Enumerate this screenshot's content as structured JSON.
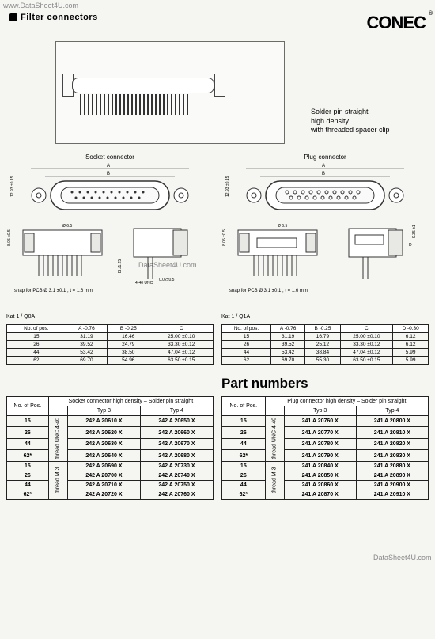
{
  "watermarks": {
    "top": "www.DataSheet4U.com",
    "midL": "DataSheet4U.com",
    "midR": "DataSheet4U.com",
    "lowR": "DataSheet4U.com"
  },
  "header": {
    "title": "Filter connectors",
    "logo": "CONEC",
    "reg": "®"
  },
  "hero": {
    "caption1": "Solder pin straight",
    "caption2": "high density",
    "caption3": "with threaded spacer clip"
  },
  "diagrams": {
    "left_label": "Socket connector",
    "right_label": "Plug connector",
    "dim_a": "A",
    "dim_b": "B",
    "dim_side": "12.93 ±0.15",
    "diag065": "Ø 6.5",
    "dim_805": "8.05 ±0.5",
    "thread": "4-40 UNC",
    "b125": "B ±1.25",
    "e0225": "0.02±0.5",
    "dim935": "9.35 ±1",
    "d": "D",
    "snap": "snap for PCB Ø 3.1 ±0.1 , t = 1.6 mm"
  },
  "dimL": {
    "kat": "Kat 1 / Q0A",
    "hdr": [
      "No. of pos.",
      "A -0.76",
      "B -0.25",
      "C"
    ],
    "rows": [
      [
        "15",
        "31.19",
        "16.46",
        "25.00 ±0.10"
      ],
      [
        "26",
        "39.52",
        "24.79",
        "33.30 ±0.12"
      ],
      [
        "44",
        "53.42",
        "38.50",
        "47.04 ±0.12"
      ],
      [
        "62",
        "69.70",
        "54.96",
        "63.50 ±0.15"
      ]
    ]
  },
  "dimR": {
    "kat": "Kat 1 / Q1A",
    "hdr": [
      "No. of pos.",
      "A -0.76",
      "B -0.25",
      "C",
      "D -0.30"
    ],
    "rows": [
      [
        "15",
        "31.19",
        "16.79",
        "25.00 ±0.10",
        "6.12"
      ],
      [
        "26",
        "39.52",
        "25.12",
        "33.30 ±0.12",
        "6.12"
      ],
      [
        "44",
        "53.42",
        "38.84",
        "47.04 ±0.12",
        "5.99"
      ],
      [
        "62",
        "69.70",
        "55.30",
        "63.50 ±0.15",
        "5.99"
      ]
    ]
  },
  "partHeading": "Part numbers",
  "partL": {
    "title": "Socket connector high density – Solder pin straight",
    "hdr": [
      "No. of Pos.",
      "Typ 3",
      "Typ 4"
    ],
    "group1": "thread UNC 4-40",
    "group2": "thread M 3",
    "rows1": [
      [
        "15",
        "242 A 20610 X",
        "242 A 20650 X"
      ],
      [
        "26",
        "242 A 20620 X",
        "242 A 20660 X"
      ],
      [
        "44",
        "242 A 20630 X",
        "242 A 20670 X"
      ],
      [
        "62*",
        "242 A 20640 X",
        "242 A 20680 X"
      ]
    ],
    "rows2": [
      [
        "15",
        "242 A 20690 X",
        "242 A 20730 X"
      ],
      [
        "26",
        "242 A 20700 X",
        "242 A 20740 X"
      ],
      [
        "44",
        "242 A 20710 X",
        "242 A 20750 X"
      ],
      [
        "62*",
        "242 A 20720 X",
        "242 A 20760 X"
      ]
    ]
  },
  "partR": {
    "title": "Plug connector high density – Solder pin straight",
    "hdr": [
      "No. of Pos.",
      "Typ 3",
      "Typ 4"
    ],
    "group1": "thread UNC 4-40",
    "group2": "thread M 3",
    "rows1": [
      [
        "15",
        "241 A 20760 X",
        "241 A 20800 X"
      ],
      [
        "26",
        "241 A 20770 X",
        "241 A 20810 X"
      ],
      [
        "44",
        "241 A 20780 X",
        "241 A 20820 X"
      ],
      [
        "62*",
        "241 A 20790 X",
        "241 A 20830 X"
      ]
    ],
    "rows2": [
      [
        "15",
        "241 A 20840 X",
        "241 A 20880 X"
      ],
      [
        "26",
        "241 A 20850 X",
        "241 A 20890 X"
      ],
      [
        "44",
        "241 A 20860 X",
        "241 A 20900 X"
      ],
      [
        "62*",
        "241 A 20870 X",
        "241 A 20910 X"
      ]
    ]
  }
}
